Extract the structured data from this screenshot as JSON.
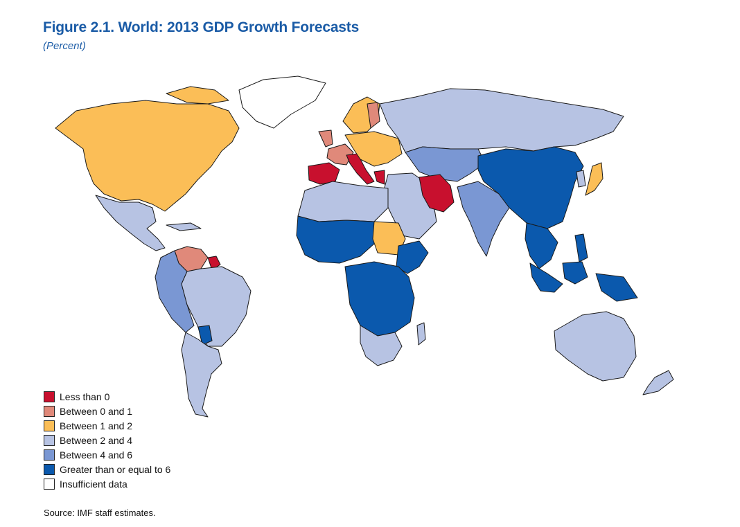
{
  "figure": {
    "title": "Figure 2.1.  World: 2013 GDP Growth Forecasts",
    "subtitle": "(Percent)",
    "source": "Source: IMF staff estimates."
  },
  "legend": [
    {
      "label": "Less than 0",
      "color": "#c8102e"
    },
    {
      "label": "Between 0 and 1",
      "color": "#e0897a"
    },
    {
      "label": "Between 1 and 2",
      "color": "#fbbe57"
    },
    {
      "label": "Between 2 and 4",
      "color": "#b7c3e3"
    },
    {
      "label": "Between 4 and 6",
      "color": "#7a97d3"
    },
    {
      "label": "Greater than or equal to 6",
      "color": "#0b59ad"
    },
    {
      "label": "Insufficient data",
      "color": "#ffffff"
    }
  ],
  "regions": [
    {
      "name": "north-america",
      "category": "Between 1 and 2"
    },
    {
      "name": "greenland",
      "category": "Insufficient data"
    },
    {
      "name": "mexico-central-america",
      "category": "Between 2 and 4"
    },
    {
      "name": "venezuela",
      "category": "Between 0 and 1"
    },
    {
      "name": "colombia-ecuador-peru",
      "category": "Between 4 and 6"
    },
    {
      "name": "brazil",
      "category": "Between 2 and 4"
    },
    {
      "name": "paraguay",
      "category": "Greater than or equal to 6"
    },
    {
      "name": "argentina-chile",
      "category": "Between 2 and 4"
    },
    {
      "name": "iberia",
      "category": "Less than 0"
    },
    {
      "name": "france-uk",
      "category": "Between 0 and 1"
    },
    {
      "name": "italy-greece",
      "category": "Less than 0"
    },
    {
      "name": "central-europe",
      "category": "Between 1 and 2"
    },
    {
      "name": "scandinavia",
      "category": "Between 1 and 2"
    },
    {
      "name": "russia",
      "category": "Between 2 and 4"
    },
    {
      "name": "kazakhstan-central-asia",
      "category": "Between 4 and 6"
    },
    {
      "name": "iran",
      "category": "Less than 0"
    },
    {
      "name": "middle-east",
      "category": "Between 2 and 4"
    },
    {
      "name": "north-africa",
      "category": "Between 2 and 4"
    },
    {
      "name": "sahel-west-africa",
      "category": "Greater than or equal to 6"
    },
    {
      "name": "sudan",
      "category": "Between 1 and 2"
    },
    {
      "name": "east-africa",
      "category": "Greater than or equal to 6"
    },
    {
      "name": "central-africa",
      "category": "Greater than or equal to 6"
    },
    {
      "name": "southern-africa",
      "category": "Between 2 and 4"
    },
    {
      "name": "india",
      "category": "Between 4 and 6"
    },
    {
      "name": "china",
      "category": "Greater than or equal to 6"
    },
    {
      "name": "southeast-asia",
      "category": "Greater than or equal to 6"
    },
    {
      "name": "indonesia",
      "category": "Greater than or equal to 6"
    },
    {
      "name": "japan",
      "category": "Between 1 and 2"
    },
    {
      "name": "australia",
      "category": "Between 2 and 4"
    },
    {
      "name": "new-zealand",
      "category": "Between 2 and 4"
    },
    {
      "name": "madagascar",
      "category": "Between 2 and 4"
    }
  ]
}
